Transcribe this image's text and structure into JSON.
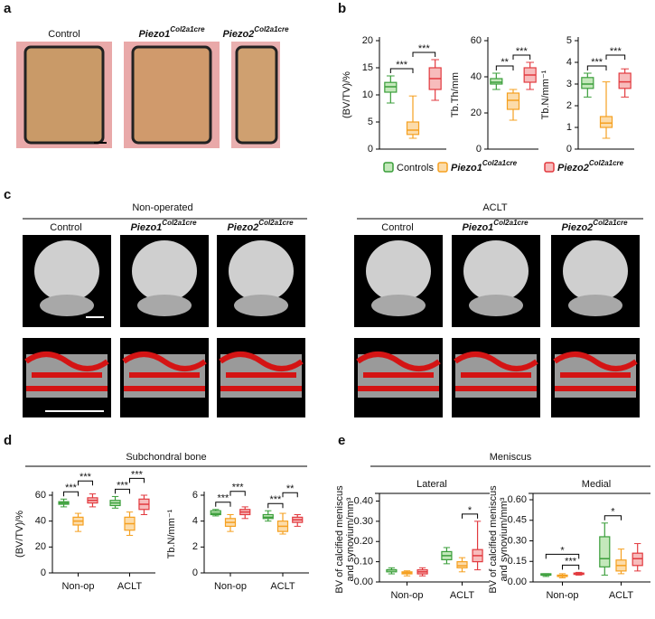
{
  "figure": {
    "panel_labels": [
      "a",
      "b",
      "c",
      "d",
      "e"
    ],
    "panel_a": {
      "labels": [
        {
          "text": "Control"
        },
        {
          "text": "Piezo1",
          "sup": "Col2a1cre"
        },
        {
          "text": "Piezo2",
          "sup": "Col2a1cre"
        }
      ]
    },
    "groups": [
      {
        "name": "Controls",
        "color": "#3a9e3a",
        "fill": "#c4e8bb"
      },
      {
        "name": "Piezo1",
        "sup": "Col2a1cre",
        "color": "#f5a020",
        "fill": "#fcdcaa"
      },
      {
        "name": "Piezo2",
        "sup": "Col2a1cre",
        "color": "#e23a3f",
        "fill": "#f7bcbc"
      }
    ],
    "panel_c": {
      "sections": [
        {
          "title": "Non-operated",
          "columns": [
            {
              "text": "Control"
            },
            {
              "text": "Piezo1",
              "sup": "Col2a1cre"
            },
            {
              "text": "Piezo2",
              "sup": "Col2a1cre"
            }
          ]
        },
        {
          "title": "ACLT",
          "columns": [
            {
              "text": "Control"
            },
            {
              "text": "Piezo1",
              "sup": "Col2a1cre"
            },
            {
              "text": "Piezo2",
              "sup": "Col2a1cre"
            }
          ]
        }
      ]
    },
    "panel_d": {
      "title": "Subchondral bone"
    },
    "panel_e": {
      "title": "Meniscus",
      "subtitles": [
        "Lateral",
        "Medial"
      ]
    }
  },
  "chart_data": [
    {
      "type": "box",
      "ylabel": [
        "(BV/TV)/%"
      ],
      "ylim": [
        0,
        20
      ],
      "yticks": [
        0,
        5,
        10,
        15,
        20
      ],
      "series": [
        {
          "values": [
            [
              8.5,
              10.5,
              11.5,
              12.3,
              13.5
            ]
          ]
        },
        {
          "values": [
            [
              2,
              2.7,
              3.5,
              5,
              9.8
            ]
          ]
        },
        {
          "values": [
            [
              9,
              11,
              13,
              15,
              16.5
            ]
          ]
        }
      ],
      "significance": [
        {
          "label": "***",
          "group": 0,
          "from": 0,
          "to": 1
        },
        {
          "label": "***",
          "group": 0,
          "from": 1,
          "to": 2
        }
      ]
    },
    {
      "type": "box",
      "ylabel": [
        "Tb.Th/mm"
      ],
      "ylim": [
        0,
        60
      ],
      "yticks": [
        0,
        20,
        40,
        60
      ],
      "series": [
        {
          "values": [
            [
              33,
              36,
              37,
              39,
              42
            ]
          ]
        },
        {
          "values": [
            [
              16,
              22,
              27,
              31,
              33
            ]
          ]
        },
        {
          "values": [
            [
              33,
              37,
              41,
              45,
              48
            ]
          ]
        }
      ],
      "significance": [
        {
          "label": "**",
          "group": 0,
          "from": 0,
          "to": 1
        },
        {
          "label": "***",
          "group": 0,
          "from": 1,
          "to": 2
        }
      ]
    },
    {
      "type": "box",
      "ylabel": [
        "Tb.N/mm⁻¹"
      ],
      "ylim": [
        0,
        5
      ],
      "yticks": [
        0,
        1,
        2,
        3,
        4,
        5
      ],
      "series": [
        {
          "values": [
            [
              2.4,
              2.8,
              3.0,
              3.3,
              3.5
            ]
          ]
        },
        {
          "values": [
            [
              0.5,
              1.0,
              1.2,
              1.5,
              3.1
            ]
          ]
        },
        {
          "values": [
            [
              2.4,
              2.8,
              3.1,
              3.5,
              3.7
            ]
          ]
        }
      ],
      "significance": [
        {
          "label": "***",
          "group": 0,
          "from": 0,
          "to": 1
        },
        {
          "label": "***",
          "group": 0,
          "from": 1,
          "to": 2
        }
      ]
    },
    {
      "type": "box",
      "ylabel": [
        "(BV/TV)/%"
      ],
      "ylim": [
        0,
        60
      ],
      "yticks": [
        0,
        20,
        40,
        60
      ],
      "categories": [
        "Non-op",
        "ACLT"
      ],
      "series": [
        {
          "values": [
            [
              51,
              53,
              54,
              55,
              57
            ],
            [
              50,
              52,
              54,
              56,
              59
            ]
          ]
        },
        {
          "values": [
            [
              32,
              37,
              40,
              43,
              46
            ],
            [
              29,
              33,
              38,
              43,
              47
            ]
          ]
        },
        {
          "values": [
            [
              51,
              54,
              56,
              58,
              61
            ],
            [
              45,
              49,
              53,
              57,
              60
            ]
          ]
        }
      ],
      "significance": [
        {
          "label": "***",
          "group": 0,
          "from": 0,
          "to": 1
        },
        {
          "label": "***",
          "group": 0,
          "from": 1,
          "to": 2
        },
        {
          "label": "***",
          "group": 1,
          "from": 0,
          "to": 1
        },
        {
          "label": "***",
          "group": 1,
          "from": 1,
          "to": 2
        }
      ]
    },
    {
      "type": "box",
      "ylabel": [
        "Tb.N/mm⁻¹"
      ],
      "ylim": [
        0,
        6
      ],
      "yticks": [
        0,
        2,
        4,
        6
      ],
      "categories": [
        "Non-op",
        "ACLT"
      ],
      "series": [
        {
          "values": [
            [
              4.4,
              4.5,
              4.6,
              4.8,
              4.9
            ],
            [
              4.0,
              4.2,
              4.3,
              4.5,
              4.8
            ]
          ]
        },
        {
          "values": [
            [
              3.2,
              3.6,
              3.9,
              4.2,
              4.5
            ],
            [
              3.0,
              3.2,
              3.6,
              4.0,
              4.6
            ]
          ]
        },
        {
          "values": [
            [
              4.2,
              4.5,
              4.7,
              4.9,
              5.1
            ],
            [
              3.6,
              3.9,
              4.1,
              4.3,
              4.5
            ]
          ]
        }
      ],
      "significance": [
        {
          "label": "***",
          "group": 0,
          "from": 0,
          "to": 1
        },
        {
          "label": "***",
          "group": 0,
          "from": 1,
          "to": 2
        },
        {
          "label": "***",
          "group": 1,
          "from": 0,
          "to": 1
        },
        {
          "label": "**",
          "group": 1,
          "from": 1,
          "to": 2
        }
      ]
    },
    {
      "type": "box",
      "ylabel": [
        "BV of calcified meniscus",
        "and synovium/mm³"
      ],
      "ylim": [
        0,
        0.42
      ],
      "yticks": [
        {
          "value": 0,
          "label": "0.00"
        },
        {
          "value": 0.1,
          "label": "0.10"
        },
        {
          "value": 0.2,
          "label": "0.20"
        },
        {
          "value": 0.3,
          "label": "0.30"
        },
        {
          "value": 0.4,
          "label": "0.40"
        }
      ],
      "categories": [
        "Non-op",
        "ACLT"
      ],
      "series": [
        {
          "values": [
            [
              0.04,
              0.05,
              0.06,
              0.06,
              0.07
            ],
            [
              0.09,
              0.11,
              0.13,
              0.15,
              0.17
            ]
          ]
        },
        {
          "values": [
            [
              0.03,
              0.04,
              0.045,
              0.05,
              0.055
            ],
            [
              0.05,
              0.07,
              0.08,
              0.1,
              0.12
            ]
          ]
        },
        {
          "values": [
            [
              0.03,
              0.04,
              0.05,
              0.06,
              0.07
            ],
            [
              0.06,
              0.1,
              0.13,
              0.16,
              0.3
            ]
          ]
        }
      ],
      "significance": [
        {
          "label": "*",
          "group": 1,
          "from": 1,
          "to": 2
        }
      ]
    },
    {
      "type": "box",
      "ylabel": [
        "BV of calcified meniscus",
        "and synovium/mm³"
      ],
      "ylim": [
        0,
        0.62
      ],
      "yticks": [
        {
          "value": 0,
          "label": "0.00"
        },
        {
          "value": 0.15,
          "label": "0.15"
        },
        {
          "value": 0.3,
          "label": "0.30"
        },
        {
          "value": 0.45,
          "label": "0.45"
        },
        {
          "value": 0.6,
          "label": "0.60"
        }
      ],
      "categories": [
        "Non-op",
        "ACLT"
      ],
      "series": [
        {
          "values": [
            [
              0.04,
              0.05,
              0.05,
              0.06,
              0.06
            ],
            [
              0.05,
              0.11,
              0.17,
              0.33,
              0.43
            ]
          ]
        },
        {
          "values": [
            [
              0.03,
              0.04,
              0.045,
              0.05,
              0.06
            ],
            [
              0.06,
              0.08,
              0.12,
              0.16,
              0.24
            ]
          ]
        },
        {
          "values": [
            [
              0.05,
              0.055,
              0.06,
              0.065,
              0.07
            ],
            [
              0.08,
              0.12,
              0.17,
              0.21,
              0.28
            ]
          ]
        }
      ],
      "significance": [
        {
          "label": "***",
          "group": 0,
          "from": 1,
          "to": 2
        },
        {
          "label": "*",
          "group": 0,
          "from": 0,
          "to": 2
        },
        {
          "label": "*",
          "group": 1,
          "from": 0,
          "to": 1
        }
      ]
    }
  ]
}
